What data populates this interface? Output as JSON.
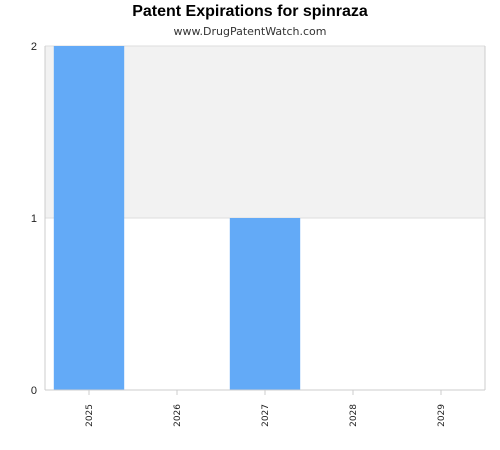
{
  "chart_data": {
    "type": "bar",
    "title": "Patent Expirations for spinraza",
    "subtitle": "www.DrugPatentWatch.com",
    "categories": [
      "2025",
      "2026",
      "2027",
      "2028",
      "2029"
    ],
    "values": [
      2,
      0,
      1,
      0,
      0
    ],
    "ylim": [
      0,
      2
    ],
    "yticks": [
      0,
      1,
      2
    ],
    "xlabel": "",
    "ylabel": "",
    "grid": true,
    "colors": {
      "bar": "#63aaf7",
      "band": "#f2f2f2",
      "grid": "#dddddd",
      "axis": "#cccccc"
    }
  }
}
